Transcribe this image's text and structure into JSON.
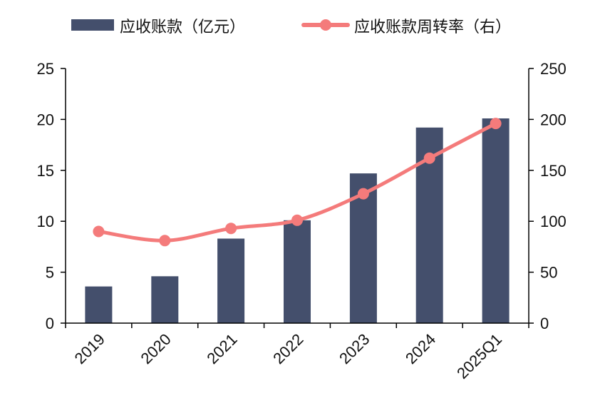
{
  "chart_data": {
    "type": "bar",
    "categories": [
      "2019",
      "2020",
      "2021",
      "2022",
      "2023",
      "2024",
      "2025Q1"
    ],
    "series": [
      {
        "name": "应收账款（亿元）",
        "type": "bar",
        "axis": "left",
        "color": "#444f6c",
        "values": [
          3.6,
          4.6,
          8.3,
          10.1,
          14.7,
          19.2,
          20.1
        ]
      },
      {
        "name": "应收账款周转率（右）",
        "type": "line",
        "axis": "right",
        "color": "#f47b7b",
        "values": [
          90,
          81,
          93,
          101,
          127,
          162,
          196
        ]
      }
    ],
    "ylim": [
      0,
      25
    ],
    "y_ticks": [
      "0",
      "5",
      "10",
      "15",
      "20",
      "25"
    ],
    "y2lim": [
      0,
      250
    ],
    "y2_ticks": [
      "0",
      "50",
      "100",
      "150",
      "200",
      "250"
    ],
    "legend_position": "top",
    "grid": false
  }
}
